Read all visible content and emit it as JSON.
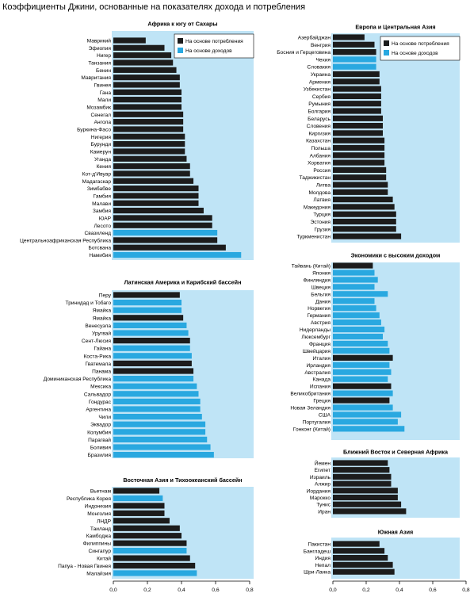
{
  "page_title": "Коэффициенты Джини, основанные на показателях дохода и потребления",
  "legend": {
    "consumption_label": "На основе потребления",
    "income_label": "На основе доходов"
  },
  "colors": {
    "consumption": "#1c1c1c",
    "income": "#29a8e0",
    "panel_background": "#bfe4f6",
    "header_background": "#ffffff"
  },
  "axis": {
    "ticks": [
      "0,0",
      "0,2",
      "0,4",
      "0,6",
      "0,8"
    ]
  },
  "chart_data": [
    {
      "type": "bar",
      "orientation": "horizontal",
      "title": "Африка к югу от Сахары",
      "xlim": [
        0,
        0.8
      ],
      "legend_position": "top-right",
      "categories": [
        "Маврикий",
        "Эфиопия",
        "Нигер",
        "Танзания",
        "Бенин",
        "Мавритания",
        "Гвинея",
        "Гана",
        "Мали",
        "Мозамбик",
        "Сенегал",
        "Ангола",
        "Буркина-Фасо",
        "Нигерия",
        "Бурунди",
        "Камерун",
        "Уганда",
        "Кения",
        "Кот-д'Ивуар",
        "Мадагаскар",
        "Зимбабве",
        "Гамбия",
        "Малави",
        "Замбия",
        "ЮАР",
        "Лесото",
        "Свазиленд",
        "Центральноафриканская Республика",
        "Ботсвана",
        "Намибия"
      ],
      "values": [
        0.19,
        0.3,
        0.34,
        0.35,
        0.37,
        0.39,
        0.39,
        0.4,
        0.4,
        0.4,
        0.41,
        0.41,
        0.41,
        0.42,
        0.42,
        0.42,
        0.43,
        0.45,
        0.45,
        0.47,
        0.5,
        0.5,
        0.5,
        0.53,
        0.58,
        0.58,
        0.61,
        0.61,
        0.66,
        0.75
      ],
      "basis": [
        "c",
        "c",
        "c",
        "c",
        "c",
        "c",
        "c",
        "c",
        "c",
        "c",
        "c",
        "c",
        "c",
        "c",
        "c",
        "c",
        "c",
        "c",
        "c",
        "c",
        "c",
        "c",
        "c",
        "c",
        "c",
        "c",
        "i",
        "c",
        "c",
        "i"
      ]
    },
    {
      "type": "bar",
      "orientation": "horizontal",
      "title": "Латинская Америка и Карибский бассейн",
      "xlim": [
        0,
        0.8
      ],
      "categories": [
        "Перу",
        "Тринидад и Тобаго",
        "Ямайка",
        "Ямайка",
        "Венесуэла",
        "Уругвай",
        "Сент-Люсия",
        "Гайана",
        "Коста-Рика",
        "Гватемала",
        "Панама",
        "Доминиканская Республика",
        "Мексика",
        "Сальвадор",
        "Гондурас",
        "Аргентина",
        "Чили",
        "Эквадор",
        "Колумбия",
        "Парагвай",
        "Боливия",
        "Бразилия"
      ],
      "values": [
        0.39,
        0.4,
        0.4,
        0.41,
        0.43,
        0.44,
        0.45,
        0.45,
        0.46,
        0.46,
        0.47,
        0.47,
        0.49,
        0.5,
        0.51,
        0.51,
        0.52,
        0.54,
        0.54,
        0.55,
        0.57,
        0.59
      ],
      "basis": [
        "c",
        "i",
        "i",
        "c",
        "i",
        "i",
        "c",
        "i",
        "i",
        "c",
        "c",
        "i",
        "i",
        "i",
        "i",
        "i",
        "i",
        "i",
        "i",
        "i",
        "i",
        "i"
      ]
    },
    {
      "type": "bar",
      "orientation": "horizontal",
      "title": "Восточная Азия и Тихоокеанский бассейн",
      "xlim": [
        0,
        0.8
      ],
      "categories": [
        "Вьетнам",
        "Республика Корея",
        "Индонезия",
        "Монголия",
        "ЛНДР",
        "Таиланд",
        "Камбоджа",
        "Филиппины",
        "Сингапур",
        "Китай",
        "Папуа - Новая Гвинея",
        "Малайзия"
      ],
      "values": [
        0.27,
        0.29,
        0.3,
        0.3,
        0.33,
        0.39,
        0.4,
        0.43,
        0.43,
        0.45,
        0.48,
        0.49
      ],
      "basis": [
        "c",
        "i",
        "c",
        "c",
        "c",
        "c",
        "c",
        "c",
        "i",
        "c",
        "c",
        "i"
      ]
    },
    {
      "type": "bar",
      "orientation": "horizontal",
      "title": "Европа и Центральная Азия",
      "xlim": [
        0,
        0.8
      ],
      "legend_position": "top-right",
      "categories": [
        "Азербайджан",
        "Венгрия",
        "Босния и Герцеговина",
        "Чехия",
        "Словакия",
        "Украина",
        "Армения",
        "Узбекистан",
        "Сербия",
        "Румыния",
        "Болгария",
        "Беларусь",
        "Словения",
        "Киргизия",
        "Казахстан",
        "Польша",
        "Албания",
        "Хорватия",
        "Россия",
        "Таджикистан",
        "Литва",
        "Молдова",
        "Латвия",
        "Македония",
        "Турция",
        "Эстония",
        "Грузия",
        "Туркменистан"
      ],
      "values": [
        0.19,
        0.25,
        0.26,
        0.26,
        0.26,
        0.28,
        0.28,
        0.29,
        0.29,
        0.29,
        0.29,
        0.3,
        0.3,
        0.3,
        0.31,
        0.31,
        0.31,
        0.31,
        0.32,
        0.32,
        0.33,
        0.33,
        0.36,
        0.37,
        0.38,
        0.38,
        0.38,
        0.41
      ],
      "basis": [
        "c",
        "c",
        "c",
        "i",
        "i",
        "c",
        "c",
        "c",
        "c",
        "c",
        "c",
        "c",
        "c",
        "c",
        "c",
        "c",
        "c",
        "c",
        "c",
        "c",
        "c",
        "c",
        "c",
        "c",
        "c",
        "c",
        "c",
        "c"
      ]
    },
    {
      "type": "bar",
      "orientation": "horizontal",
      "title": "Экономики с высоким доходом",
      "xlim": [
        0,
        0.8
      ],
      "categories": [
        "Тайвань (Китай)",
        "Япония",
        "Финляндия",
        "Швеция",
        "Бельгия",
        "Дания",
        "Норвегия",
        "Германия",
        "Австрия",
        "Нидерланды",
        "Люксембург",
        "Франция",
        "Швейцария",
        "Италия",
        "Ирландия",
        "Австралия",
        "Канада",
        "Испания",
        "Великобритания",
        "Греция",
        "Новая Зеландия",
        "США",
        "Португалия",
        "Гонконг (Китай)"
      ],
      "values": [
        0.24,
        0.25,
        0.27,
        0.25,
        0.33,
        0.25,
        0.26,
        0.28,
        0.29,
        0.31,
        0.3,
        0.33,
        0.34,
        0.36,
        0.34,
        0.35,
        0.33,
        0.35,
        0.36,
        0.34,
        0.36,
        0.41,
        0.39,
        0.43
      ],
      "basis": [
        "c",
        "i",
        "i",
        "i",
        "i",
        "i",
        "i",
        "i",
        "i",
        "i",
        "i",
        "i",
        "i",
        "c",
        "i",
        "i",
        "i",
        "c",
        "i",
        "c",
        "i",
        "i",
        "i",
        "i"
      ]
    },
    {
      "type": "bar",
      "orientation": "horizontal",
      "title": "Ближний Восток и Северная Африка",
      "xlim": [
        0,
        0.8
      ],
      "categories": [
        "Йемен",
        "Египет",
        "Израиль",
        "Алжир",
        "Иордания",
        "Марокко",
        "Тунис",
        "Иран"
      ],
      "values": [
        0.33,
        0.34,
        0.35,
        0.35,
        0.39,
        0.39,
        0.41,
        0.44
      ],
      "basis": [
        "c",
        "c",
        "c",
        "c",
        "c",
        "c",
        "c",
        "c"
      ]
    },
    {
      "type": "bar",
      "orientation": "horizontal",
      "title": "Южная Азия",
      "xlim": [
        0,
        0.8
      ],
      "categories": [
        "Пакистан",
        "Бангладеш",
        "Индия",
        "Непал",
        "Шри-Ланка"
      ],
      "values": [
        0.28,
        0.31,
        0.33,
        0.36,
        0.37
      ],
      "basis": [
        "c",
        "c",
        "c",
        "c",
        "c"
      ]
    }
  ]
}
